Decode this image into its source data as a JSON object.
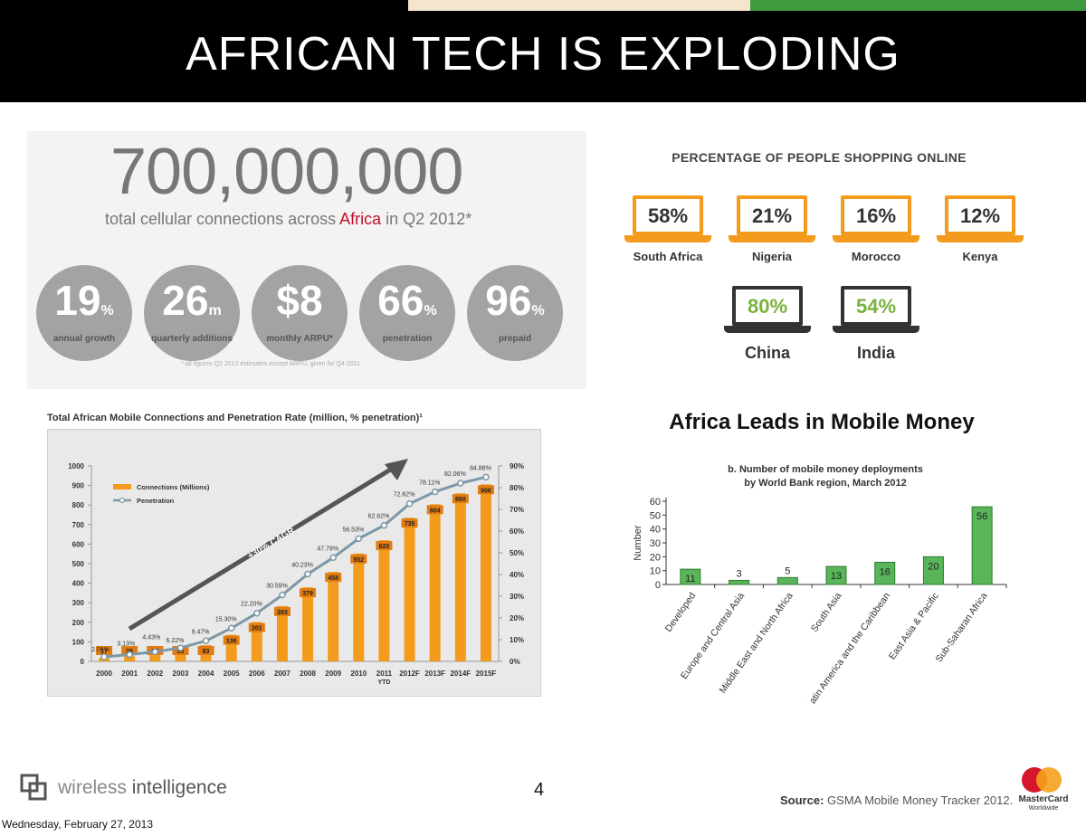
{
  "slide": {
    "title": "AFRICAN TECH IS EXPLODING",
    "page_number": "4",
    "date": "Wednesday, February 27, 2013",
    "source_label": "Source:",
    "source_text": "GSMA Mobile Money Tracker 2012.",
    "logo_wireless_a": "wireless ",
    "logo_wireless_b": "intelligence",
    "logo_mastercard": "MasterCard",
    "logo_mastercard_sub": "Worldwide",
    "accent_colors": [
      "#f3e6cc",
      "#3e9a3e"
    ]
  },
  "stats": {
    "headline_number": "700,000,000",
    "subline_before": "total cellular connections across ",
    "subline_highlight": "Africa",
    "subline_after": " in Q2 2012*",
    "circles": [
      {
        "value": "19",
        "unit": "%",
        "caption": "annual growth"
      },
      {
        "value": "26",
        "unit": "m",
        "caption": "quarterly additions"
      },
      {
        "value": "$8",
        "unit": "",
        "caption": "monthly ARPU*"
      },
      {
        "value": "66",
        "unit": "%",
        "caption": "penetration"
      },
      {
        "value": "96",
        "unit": "%",
        "caption": "prepaid"
      }
    ],
    "footnote": "* all figures Q2 2012 estimates except ARPU, given for Q4 2011"
  },
  "shopping": {
    "title": "PERCENTAGE OF PEOPLE SHOPPING ONLINE",
    "africa": [
      {
        "country": "South Africa",
        "value": "58%"
      },
      {
        "country": "Nigeria",
        "value": "21%"
      },
      {
        "country": "Morocco",
        "value": "16%"
      },
      {
        "country": "Kenya",
        "value": "12%"
      }
    ],
    "comparison": [
      {
        "country": "China",
        "value": "80%"
      },
      {
        "country": "India",
        "value": "54%"
      }
    ]
  },
  "chart_data": [
    {
      "type": "bar",
      "title": "Total African Mobile Connections and Penetration Rate (million, % penetration)¹",
      "categories": [
        "2000",
        "2001",
        "2002",
        "2003",
        "2004",
        "2005",
        "2006",
        "2007",
        "2008",
        "2009",
        "2010",
        "2011",
        "2012F",
        "2013F",
        "2014F",
        "2015F"
      ],
      "category_sublabels": {
        "2011": "YTD"
      },
      "series": [
        {
          "name": "Connections (Millions)",
          "type": "bar",
          "axis": "left",
          "color": "#f29b1c",
          "values": [
            17,
            26,
            37,
            53,
            83,
            136,
            201,
            283,
            379,
            458,
            552,
            620,
            735,
            804,
            860,
            906
          ]
        },
        {
          "name": "Penetration",
          "type": "line",
          "axis": "right",
          "color": "#7e97a6",
          "values": [
            2.06,
            3.13,
            4.43,
            6.22,
            9.47,
            15.3,
            22.2,
            30.59,
            40.23,
            47.79,
            56.53,
            62.62,
            72.62,
            78.11,
            82.06,
            84.88
          ],
          "labels": [
            "2.06%",
            "3.13%",
            "4.43%",
            "6.22%",
            "9.47%",
            "15.30%",
            "22.20%",
            "30.59%",
            "40.23%",
            "47.79%",
            "56.53%",
            "62.62%",
            "72.62%",
            "78.11%",
            "82.06%",
            "84.88%"
          ]
        }
      ],
      "ylim": [
        0,
        1000
      ],
      "y_ticks": [
        0,
        100,
        200,
        300,
        400,
        500,
        600,
        700,
        800,
        900,
        1000
      ],
      "y2lim": [
        0,
        90
      ],
      "y2_ticks": [
        "0%",
        "10%",
        "20%",
        "30%",
        "40%",
        "50%",
        "60%",
        "70%",
        "80%",
        "90%"
      ],
      "annotation": "+30% CAGR",
      "legend_position": "top-left"
    },
    {
      "type": "bar",
      "title": "b. Number of mobile money deployments by World Bank region, March 2012",
      "heading": "Africa Leads in Mobile Money",
      "categories": [
        "Developed",
        "Europe and Central Asia",
        "Middle East and North Africa",
        "South Asia",
        "Latin America and the Caribbean",
        "East Asia & Pacific",
        "Sub-Saharan Africa"
      ],
      "values": [
        11,
        3,
        5,
        13,
        16,
        20,
        56
      ],
      "ylabel": "Number",
      "ylim": [
        0,
        60
      ],
      "y_ticks": [
        0,
        10,
        20,
        30,
        40,
        50,
        60
      ],
      "color": "#5ab55a"
    }
  ]
}
